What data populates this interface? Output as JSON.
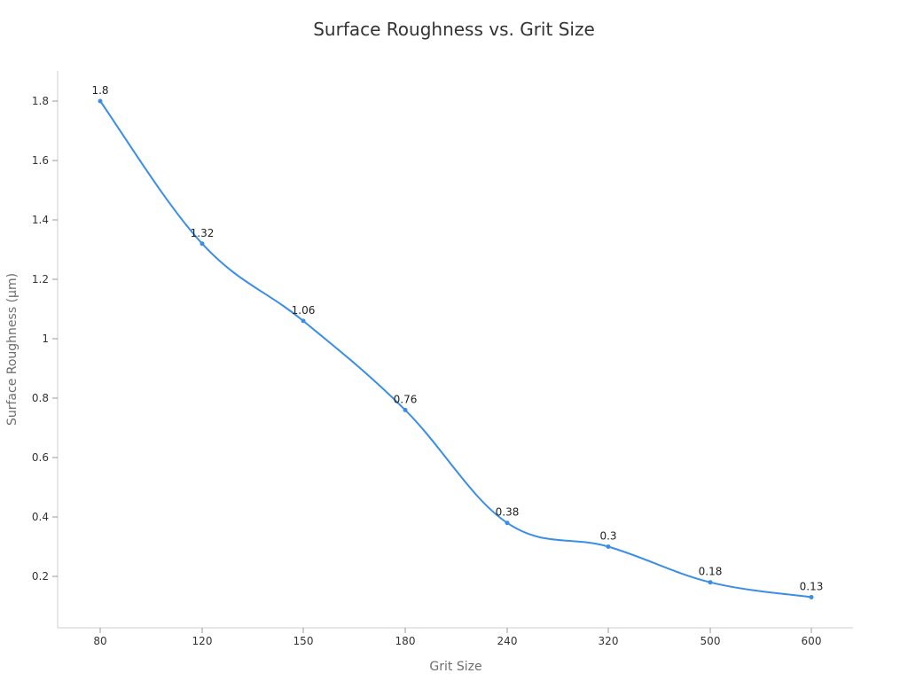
{
  "chart_data": {
    "type": "line",
    "title": "Surface Roughness vs. Grit Size",
    "xlabel": "Grit Size",
    "ylabel": "Surface Roughness (µm)",
    "categories": [
      "80",
      "120",
      "150",
      "180",
      "240",
      "320",
      "500",
      "600"
    ],
    "series": [
      {
        "name": "Surface Roughness",
        "values": [
          1.8,
          1.32,
          1.06,
          0.76,
          0.38,
          0.3,
          0.18,
          0.13
        ],
        "color": "#3a8ee6",
        "smooth": true,
        "data_labels": [
          "1.8",
          "1.32",
          "1.06",
          "0.76",
          "0.38",
          "0.3",
          "0.18",
          "0.13"
        ]
      }
    ],
    "yticks": [
      0.2,
      0.4,
      0.6,
      0.8,
      1,
      1.2,
      1.4,
      1.6,
      1.8
    ],
    "ytick_labels": [
      "0.2",
      "0.4",
      "0.6",
      "0.8",
      "1",
      "1.2",
      "1.4",
      "1.6",
      "1.8"
    ],
    "ylim": [
      0.03,
      1.9
    ],
    "grid": false,
    "legend": null
  }
}
